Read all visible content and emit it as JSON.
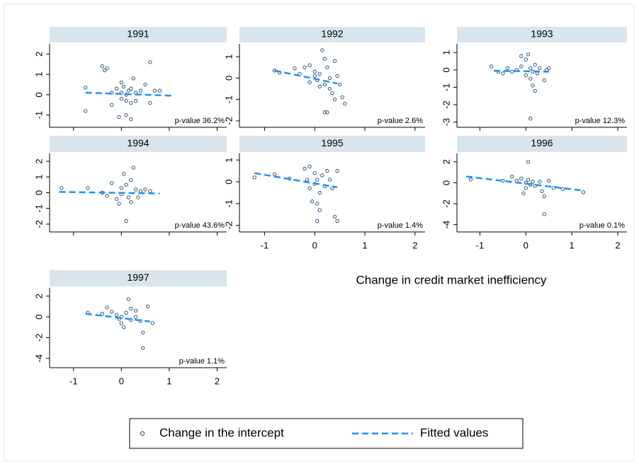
{
  "chart_data": {
    "type": "scatter",
    "xlabel": "Change in credit market inefficiency",
    "xlim": [
      -1.5,
      2.2
    ],
    "xticks": [
      -1,
      0,
      1,
      2
    ],
    "series": [
      {
        "name": "Change in the intercept",
        "color": "#1a476f",
        "marker": "hollow-circle"
      },
      {
        "name": "Fitted values",
        "color": "#1e90ff",
        "dash": true
      }
    ],
    "panels": [
      {
        "title": "1991",
        "annotation": "p-value 36.2%",
        "ylim": [
          -1.6,
          2.5
        ],
        "yticks": [
          -1,
          0,
          1,
          2
        ],
        "show_xticks": false,
        "series": [
          {
            "x": [
              -0.75,
              -0.75,
              -0.4,
              -0.35,
              -0.3,
              -0.2,
              -0.1,
              0,
              0,
              0.05,
              0.1,
              0.1,
              0.15,
              0.2,
              0.2,
              0.25,
              0.3,
              0.3,
              -0.05,
              0.1,
              0.2,
              0.5,
              0.6,
              0.7,
              0.6,
              0.8,
              -0.2,
              0,
              0.4
            ],
            "values": [
              0.35,
              -0.8,
              1.4,
              1.2,
              1.3,
              0.1,
              0.3,
              0.1,
              -0.2,
              0.4,
              0,
              -0.3,
              0.2,
              0.3,
              -0.4,
              0.8,
              0.1,
              -0.3,
              -1.1,
              -1.0,
              -1.2,
              0.5,
              1.6,
              0.2,
              -0.4,
              0.2,
              -0.5,
              0.6,
              0.2
            ]
          },
          {
            "x": [
              -0.75,
              1.1
            ],
            "values": [
              0.1,
              -0.05
            ]
          }
        ]
      },
      {
        "title": "1992",
        "annotation": "p-value 2.6%",
        "ylim": [
          -2.3,
          1.6
        ],
        "yticks": [
          -2,
          -1,
          0,
          1
        ],
        "show_xticks": false,
        "series": [
          {
            "x": [
              -0.8,
              -0.7,
              -0.4,
              -0.3,
              -0.2,
              -0.1,
              0,
              0,
              0.05,
              0.1,
              0.15,
              0.2,
              0.2,
              0.25,
              0.3,
              0.3,
              0.35,
              0.4,
              0.45,
              0.5,
              0.55,
              0.6,
              0.2,
              0.25,
              0.1,
              -0.1,
              0.4
            ],
            "values": [
              0.35,
              0.25,
              0.45,
              0.2,
              0.5,
              0.6,
              0.3,
              0.1,
              -0.1,
              0.2,
              1.3,
              0.9,
              -0.3,
              0.5,
              -0.5,
              0,
              -0.7,
              0.8,
              0.1,
              -0.3,
              -0.9,
              -1.2,
              -1.6,
              -1.6,
              -0.4,
              -0.2,
              -1.0
            ]
          },
          {
            "x": [
              -0.8,
              0.45
            ],
            "values": [
              0.35,
              -0.25
            ]
          }
        ]
      },
      {
        "title": "1993",
        "annotation": "p-value 12.3%",
        "ylim": [
          -3.3,
          1.5
        ],
        "yticks": [
          -3,
          -2,
          -1,
          0,
          1
        ],
        "show_xticks": false,
        "series": [
          {
            "x": [
              -0.75,
              -0.6,
              -0.5,
              -0.4,
              -0.3,
              -0.2,
              -0.1,
              -0.1,
              0,
              0,
              0.05,
              0.1,
              0.1,
              0.15,
              0.2,
              0.2,
              0.25,
              0.3,
              0.4,
              0.45,
              0.5,
              0.1,
              0.15
            ],
            "values": [
              0.2,
              -0.1,
              -0.2,
              0.1,
              -0.1,
              0,
              0.2,
              0.8,
              0.6,
              -0.3,
              0.9,
              0.1,
              -0.5,
              -0.1,
              0.3,
              -1.2,
              -0.2,
              0.1,
              -0.6,
              0,
              0.1,
              -2.8,
              -0.9
            ]
          },
          {
            "x": [
              -0.7,
              0.5
            ],
            "values": [
              -0.05,
              -0.1
            ]
          }
        ]
      },
      {
        "title": "1994",
        "annotation": "p-value 43.6%",
        "ylim": [
          -2.5,
          2.5
        ],
        "yticks": [
          -2,
          -1,
          0,
          1,
          2
        ],
        "show_xticks": false,
        "series": [
          {
            "x": [
              -1.25,
              -0.7,
              -0.4,
              -0.3,
              -0.2,
              -0.1,
              0,
              0,
              0.05,
              0.1,
              0.15,
              0.2,
              0.2,
              0.25,
              0.3,
              0.35,
              0.4,
              0.5,
              0.1,
              0.6,
              -0.05
            ],
            "values": [
              0.3,
              0.3,
              0,
              -0.2,
              0.6,
              -0.4,
              0.3,
              -0.1,
              1.2,
              0.5,
              -0.3,
              0.8,
              -0.6,
              1.6,
              0.2,
              -0.3,
              0.1,
              0.2,
              -1.8,
              0.1,
              -0.7
            ]
          },
          {
            "x": [
              -1.3,
              0.8
            ],
            "values": [
              0.05,
              -0.05
            ]
          }
        ]
      },
      {
        "title": "1995",
        "annotation": "p-value 1.4%",
        "ylim": [
          -2.3,
          1.3
        ],
        "yticks": [
          -2,
          -1,
          0,
          1
        ],
        "show_xticks": true,
        "series": [
          {
            "x": [
              -1.2,
              -0.8,
              -0.5,
              -0.2,
              -0.15,
              -0.1,
              -0.1,
              0,
              0,
              0.05,
              0.1,
              0.15,
              0.2,
              0.25,
              0.3,
              0.35,
              0.45,
              0.4,
              0.45,
              0.05,
              0.1,
              0.05,
              -0.05
            ],
            "values": [
              0.2,
              0.35,
              0.15,
              0.6,
              0.1,
              -0.3,
              0.7,
              -0.1,
              0.4,
              0.1,
              -0.5,
              0.3,
              -0.2,
              0.5,
              0.1,
              -0.3,
              0.5,
              -1.6,
              -1.8,
              -1.0,
              -1.3,
              -1.8,
              -0.9
            ]
          },
          {
            "x": [
              -1.2,
              0.45
            ],
            "values": [
              0.4,
              -0.25
            ]
          }
        ]
      },
      {
        "title": "1996",
        "annotation": "p-value 0.1%",
        "ylim": [
          -4.7,
          2.8
        ],
        "yticks": [
          -4,
          -2,
          0,
          2
        ],
        "show_xticks": true,
        "series": [
          {
            "x": [
              -1.2,
              -0.5,
              -0.3,
              -0.2,
              -0.1,
              0,
              0,
              0.05,
              0.1,
              0.15,
              0.2,
              0.3,
              0.35,
              0.05,
              0.4,
              0.4,
              0.6,
              0.8,
              1.25,
              -0.05,
              0.5
            ],
            "values": [
              0.3,
              0.2,
              0.6,
              0.2,
              0.4,
              0,
              -0.5,
              0.3,
              -0.2,
              0.1,
              -0.3,
              0.1,
              -0.8,
              2.0,
              -1.3,
              -3.0,
              -0.5,
              -0.6,
              -0.9,
              -1.0,
              0.2
            ]
          },
          {
            "x": [
              -1.3,
              1.25
            ],
            "values": [
              0.6,
              -0.75
            ]
          }
        ]
      },
      {
        "title": "1997",
        "annotation": "p-value 1.1%",
        "ylim": [
          -4.9,
          2.8
        ],
        "yticks": [
          -4,
          -2,
          0,
          2
        ],
        "show_xticks": true,
        "series": [
          {
            "x": [
              -0.7,
              -0.4,
              -0.3,
              -0.2,
              -0.1,
              0,
              0,
              0.05,
              0.1,
              0.15,
              0.2,
              0.2,
              0.3,
              0.3,
              0.4,
              0.45,
              0.45,
              0.55,
              0.65,
              -0.05
            ],
            "values": [
              0.4,
              0.3,
              0.9,
              0.5,
              0.2,
              0,
              -0.6,
              -1.0,
              0.4,
              1.7,
              0.8,
              -0.3,
              0,
              0.6,
              -0.4,
              -1.5,
              -3.0,
              1.0,
              -0.6,
              -0.2
            ]
          },
          {
            "x": [
              -0.75,
              0.6
            ],
            "values": [
              0.3,
              -0.45
            ]
          }
        ]
      }
    ]
  }
}
